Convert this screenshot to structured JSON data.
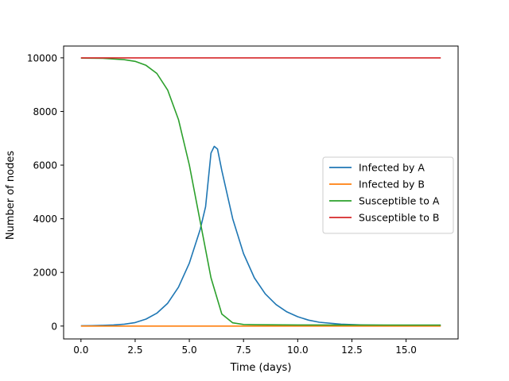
{
  "chart_data": {
    "type": "line",
    "title": "",
    "xlabel": "Time (days)",
    "ylabel": "Number of nodes",
    "xlim": [
      -0.8,
      17.4
    ],
    "ylim": [
      -480,
      10440
    ],
    "xticks": [
      0.0,
      2.5,
      5.0,
      7.5,
      10.0,
      12.5,
      15.0
    ],
    "xtick_labels": [
      "0.0",
      "2.5",
      "5.0",
      "7.5",
      "10.0",
      "12.5",
      "15.0"
    ],
    "yticks": [
      0,
      2000,
      4000,
      6000,
      8000,
      10000
    ],
    "ytick_labels": [
      "0",
      "2000",
      "4000",
      "6000",
      "8000",
      "10000"
    ],
    "grid": false,
    "legend_position": "center-right",
    "series": [
      {
        "name": "Infected by A",
        "color": "#1f77b4",
        "points": [
          [
            0,
            10
          ],
          [
            0.5,
            15
          ],
          [
            1,
            25
          ],
          [
            1.5,
            40
          ],
          [
            2,
            70
          ],
          [
            2.5,
            130
          ],
          [
            3,
            260
          ],
          [
            3.5,
            480
          ],
          [
            4,
            850
          ],
          [
            4.5,
            1450
          ],
          [
            5,
            2350
          ],
          [
            5.5,
            3600
          ],
          [
            5.75,
            4450
          ],
          [
            6,
            6450
          ],
          [
            6.15,
            6700
          ],
          [
            6.3,
            6600
          ],
          [
            6.5,
            5800
          ],
          [
            7,
            4000
          ],
          [
            7.5,
            2700
          ],
          [
            8,
            1800
          ],
          [
            8.5,
            1200
          ],
          [
            9,
            800
          ],
          [
            9.5,
            530
          ],
          [
            10,
            350
          ],
          [
            10.5,
            220
          ],
          [
            11,
            140
          ],
          [
            12,
            70
          ],
          [
            13,
            40
          ],
          [
            14,
            30
          ],
          [
            15,
            25
          ],
          [
            16.6,
            20
          ]
        ]
      },
      {
        "name": "Infected by B",
        "color": "#ff7f0e",
        "points": [
          [
            0,
            0
          ],
          [
            16.6,
            0
          ]
        ]
      },
      {
        "name": "Susceptible to A",
        "color": "#2ca02c",
        "points": [
          [
            0,
            9990
          ],
          [
            1,
            9980
          ],
          [
            2,
            9930
          ],
          [
            2.5,
            9870
          ],
          [
            3,
            9720
          ],
          [
            3.5,
            9420
          ],
          [
            4,
            8800
          ],
          [
            4.5,
            7700
          ],
          [
            5,
            6000
          ],
          [
            5.5,
            3900
          ],
          [
            6,
            1800
          ],
          [
            6.5,
            450
          ],
          [
            7,
            120
          ],
          [
            7.5,
            60
          ],
          [
            8,
            50
          ],
          [
            10,
            40
          ],
          [
            16.6,
            35
          ]
        ]
      },
      {
        "name": "Susceptible to B",
        "color": "#d62728",
        "points": [
          [
            0,
            10000
          ],
          [
            16.6,
            10000
          ]
        ]
      }
    ]
  }
}
